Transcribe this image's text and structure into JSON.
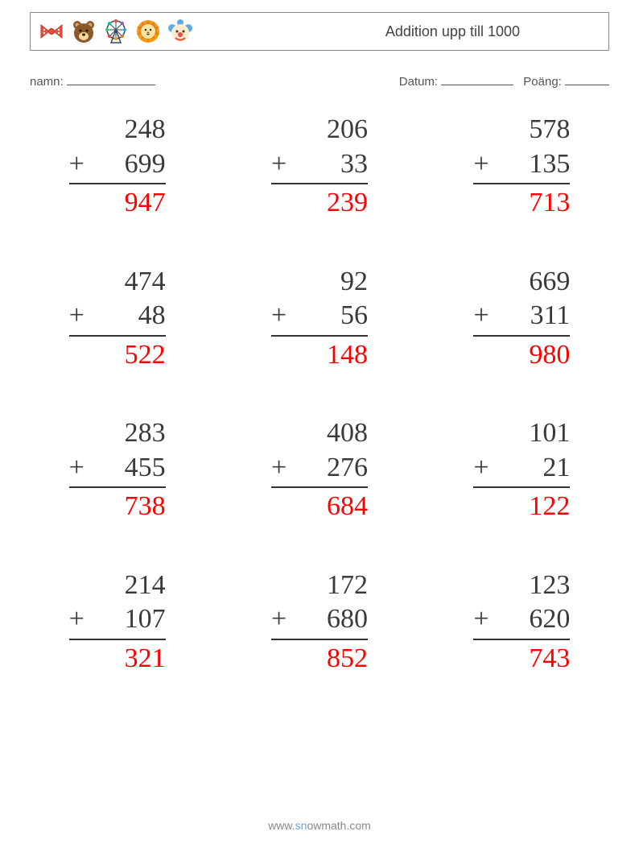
{
  "header": {
    "title": "Addition upp till 1000",
    "icons": [
      {
        "name": "bowtie-icon",
        "color1": "#e74c3c",
        "color2": "#ffffff"
      },
      {
        "name": "bear-icon",
        "color1": "#8b5a2b",
        "color2": "#f4d03f"
      },
      {
        "name": "ferris-wheel-icon",
        "color1": "#34495e",
        "color2": "#e74c3c"
      },
      {
        "name": "lion-icon",
        "color1": "#f39c12",
        "color2": "#ffe4a3"
      },
      {
        "name": "clown-icon",
        "color1": "#5dade2",
        "color2": "#e74c3c"
      }
    ]
  },
  "meta": {
    "name_label": "namn:",
    "date_label": "Datum:",
    "score_label": "Poäng:"
  },
  "worksheet": {
    "type": "addition-vertical",
    "rows": 4,
    "cols": 3,
    "operator": "+",
    "number_color": "#3a3a3a",
    "answer_color": "#ff0000",
    "font_size": 34,
    "line_color": "#333333",
    "problems": [
      {
        "a": "248",
        "b": "699",
        "ans": "947"
      },
      {
        "a": "206",
        "b": "33",
        "ans": "239"
      },
      {
        "a": "578",
        "b": "135",
        "ans": "713"
      },
      {
        "a": "474",
        "b": "48",
        "ans": "522"
      },
      {
        "a": "92",
        "b": "56",
        "ans": "148"
      },
      {
        "a": "669",
        "b": "311",
        "ans": "980"
      },
      {
        "a": "283",
        "b": "455",
        "ans": "738"
      },
      {
        "a": "408",
        "b": "276",
        "ans": "684"
      },
      {
        "a": "101",
        "b": "21",
        "ans": "122"
      },
      {
        "a": "214",
        "b": "107",
        "ans": "321"
      },
      {
        "a": "172",
        "b": "680",
        "ans": "852"
      },
      {
        "a": "123",
        "b": "620",
        "ans": "743"
      }
    ]
  },
  "footer": {
    "prefix": "www.",
    "brand1": "sn",
    "brand2": "ow",
    "suffix": "math.com"
  }
}
